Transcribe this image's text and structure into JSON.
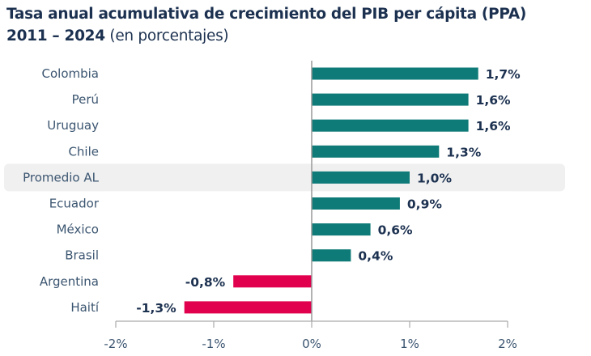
{
  "chart_data": {
    "type": "bar",
    "orientation": "horizontal",
    "title": "Tasa anual acumulativa de crecimiento del PIB per cápita (PPA)",
    "subtitle_bold": "2011 – 2024",
    "subtitle": "(en porcentajes)",
    "categories": [
      "Colombia",
      "Perú",
      "Uruguay",
      "Chile",
      "Promedio AL",
      "Ecuador",
      "México",
      "Brasil",
      "Argentina",
      "Haití"
    ],
    "values": [
      1.7,
      1.6,
      1.6,
      1.3,
      1.0,
      0.9,
      0.6,
      0.4,
      -0.8,
      -1.3
    ],
    "data_labels": [
      "1,7%",
      "1,6%",
      "1,6%",
      "1,3%",
      "1,0%",
      "0,9%",
      "0,6%",
      "0,4%",
      "-0,8%",
      "-1,3%"
    ],
    "highlighted_category": "Promedio AL",
    "xlim": [
      -2,
      2
    ],
    "xticks": [
      -2,
      -1,
      0,
      1,
      2
    ],
    "xtick_labels": [
      "-2%",
      "-1%",
      "0%",
      "1%",
      "2%"
    ],
    "grid": false,
    "colors": {
      "positive": "#0f7b78",
      "negative": "#e0004d",
      "highlight_band": "#f0f0f0"
    }
  }
}
